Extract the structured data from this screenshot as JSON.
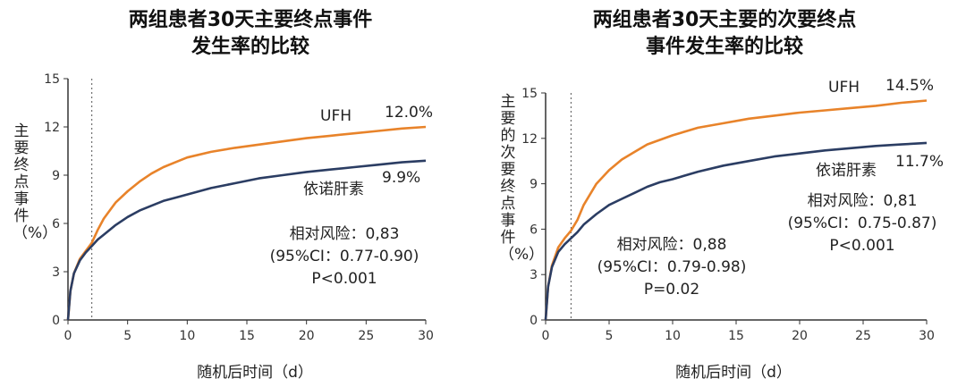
{
  "chart_data": [
    {
      "type": "line",
      "title": "两组患者30天主要终点事件\n发生率的比较",
      "xlabel": "随机后时间（d）",
      "ylabel": "主要终点事件（%）",
      "xlim": [
        0,
        30
      ],
      "ylim": [
        0,
        15
      ],
      "xticks": [
        "0",
        "5",
        "10",
        "15",
        "20",
        "25",
        "30"
      ],
      "yticks": [
        "0",
        "3",
        "6",
        "9",
        "12",
        "15"
      ],
      "reference_line_x": 2,
      "grid": false,
      "series": [
        {
          "name": "UFH",
          "end_label": "12.0%",
          "color": "#E8832A",
          "x": [
            0,
            0.2,
            0.5,
            1,
            1.5,
            2,
            2.5,
            3,
            4,
            5,
            6,
            7,
            8,
            9,
            10,
            12,
            14,
            16,
            18,
            20,
            22,
            24,
            26,
            28,
            30
          ],
          "y": [
            0,
            1.8,
            2.9,
            3.8,
            4.3,
            4.8,
            5.6,
            6.3,
            7.3,
            8.0,
            8.6,
            9.1,
            9.5,
            9.8,
            10.1,
            10.45,
            10.7,
            10.9,
            11.1,
            11.3,
            11.45,
            11.6,
            11.75,
            11.9,
            12.0
          ]
        },
        {
          "name": "依诺肝素",
          "end_label": "9.9%",
          "color": "#2B3D63",
          "x": [
            0,
            0.2,
            0.5,
            1,
            1.5,
            2,
            2.5,
            3,
            4,
            5,
            6,
            7,
            8,
            9,
            10,
            12,
            14,
            16,
            18,
            20,
            22,
            24,
            26,
            28,
            30
          ],
          "y": [
            0,
            1.8,
            2.9,
            3.7,
            4.2,
            4.6,
            5.0,
            5.3,
            5.9,
            6.4,
            6.8,
            7.1,
            7.4,
            7.6,
            7.8,
            8.2,
            8.5,
            8.8,
            9.0,
            9.2,
            9.35,
            9.5,
            9.65,
            9.8,
            9.9
          ]
        }
      ],
      "stats": [
        "相对风险：0,83",
        "(95%CI：0.77-0.90)",
        "P<0.001"
      ]
    },
    {
      "type": "line",
      "title": "两组患者30天主要的次要终点\n事件发生率的比较",
      "xlabel": "随机后时间（d）",
      "ylabel": "主要的次要终点事件（%）",
      "xlim": [
        0,
        30
      ],
      "ylim": [
        0,
        15
      ],
      "xticks": [
        "0",
        "5",
        "10",
        "15",
        "20",
        "25",
        "30"
      ],
      "yticks": [
        "0",
        "3",
        "6",
        "9",
        "12",
        "15"
      ],
      "reference_line_x": 2,
      "grid": false,
      "series": [
        {
          "name": "UFH",
          "end_label": "14.5%",
          "color": "#E8832A",
          "x": [
            0,
            0.2,
            0.5,
            1,
            1.5,
            2,
            2.5,
            3,
            4,
            5,
            6,
            7,
            8,
            9,
            10,
            12,
            14,
            16,
            18,
            20,
            22,
            24,
            26,
            28,
            30
          ],
          "y": [
            0,
            2.2,
            3.6,
            4.8,
            5.4,
            5.9,
            6.6,
            7.6,
            9.0,
            9.9,
            10.6,
            11.1,
            11.6,
            11.9,
            12.2,
            12.7,
            13.0,
            13.3,
            13.5,
            13.7,
            13.85,
            14.0,
            14.15,
            14.35,
            14.5
          ]
        },
        {
          "name": "依诺肝素",
          "end_label": "11.7%",
          "color": "#2B3D63",
          "x": [
            0,
            0.2,
            0.5,
            1,
            1.5,
            2,
            2.5,
            3,
            4,
            5,
            6,
            7,
            8,
            9,
            10,
            12,
            14,
            16,
            18,
            20,
            22,
            24,
            26,
            28,
            30
          ],
          "y": [
            0,
            2.2,
            3.5,
            4.5,
            5.0,
            5.4,
            5.8,
            6.3,
            7.0,
            7.6,
            8.0,
            8.4,
            8.8,
            9.1,
            9.3,
            9.8,
            10.2,
            10.5,
            10.8,
            11.0,
            11.2,
            11.35,
            11.5,
            11.6,
            11.7
          ]
        }
      ],
      "stats_upper": [
        "相对风险：0,81",
        "(95%CI：0.75-0.87)",
        "P<0.001"
      ],
      "stats_lower": [
        "相对风险：0,88",
        "(95%CI：0.79-0.98)",
        "P=0.02"
      ]
    }
  ]
}
